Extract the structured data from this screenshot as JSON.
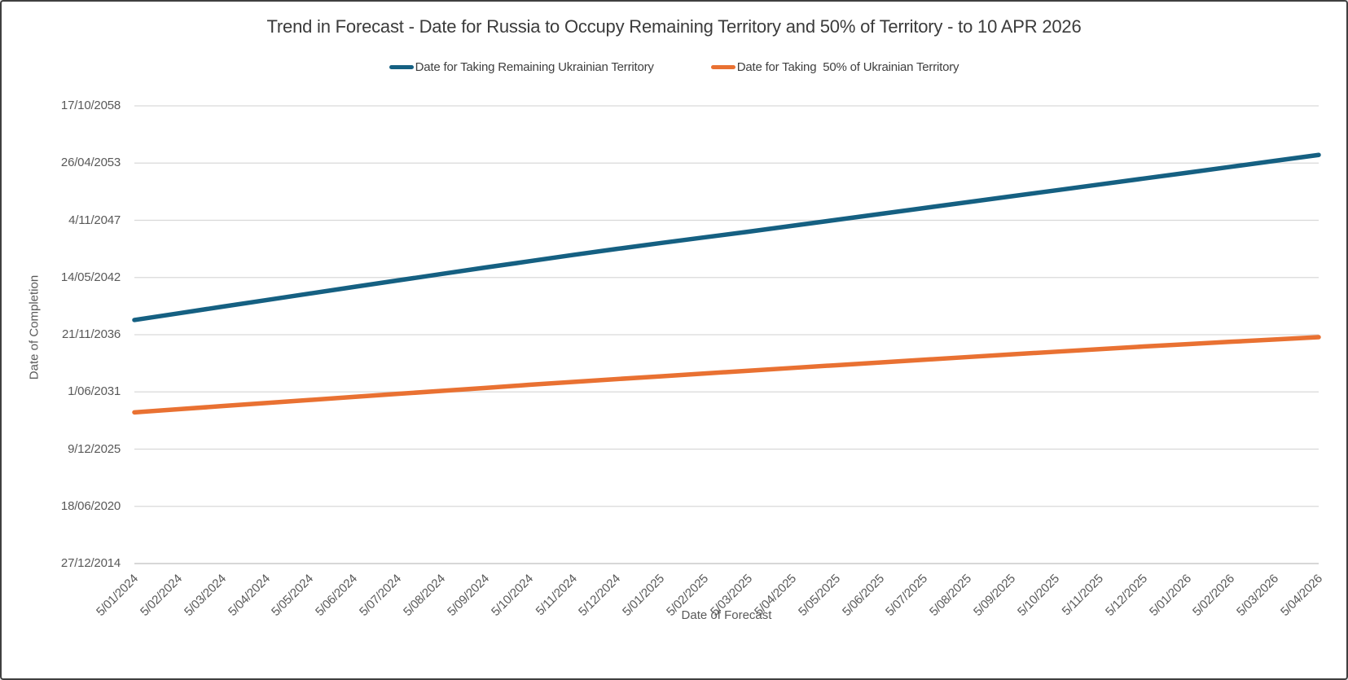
{
  "chart_data": {
    "type": "line",
    "title": "Trend in Forecast - Date for Russia to Occupy Remaining Territory and 50% of Territory - to 10 APR 2026",
    "xlabel": "Date of Forecast",
    "ylabel": "Date of Completion",
    "legend_position": "top-center",
    "grid": "horizontal",
    "y_axis": {
      "min": "27/12/2014",
      "max": "17/10/2058",
      "major_unit_days": 2000
    },
    "y_tick_labels": [
      "27/12/2014",
      "18/06/2020",
      "9/12/2025",
      "1/06/2031",
      "21/11/2036",
      "14/05/2042",
      "4/11/2047",
      "26/04/2053",
      "17/10/2058"
    ],
    "x_tick_labels": [
      "5/01/2024",
      "5/02/2024",
      "5/03/2024",
      "5/04/2024",
      "5/05/2024",
      "5/06/2024",
      "5/07/2024",
      "5/08/2024",
      "5/09/2024",
      "5/10/2024",
      "5/11/2024",
      "5/12/2024",
      "5/01/2025",
      "5/02/2025",
      "5/03/2025",
      "5/04/2025",
      "5/05/2025",
      "5/06/2025",
      "5/07/2025",
      "5/08/2025",
      "5/09/2025",
      "5/10/2025",
      "5/11/2025",
      "5/12/2025",
      "5/01/2026",
      "5/02/2026",
      "5/03/2026",
      "5/04/2026"
    ],
    "series": [
      {
        "name": "Date for Taking Remaining Ukrainian Territory",
        "color": "#156082",
        "values": [
          "20/04/2038",
          "06/12/2038",
          "27/07/2039",
          "13/03/2040",
          "30/10/2040",
          "17/06/2041",
          "30/01/2042",
          "13/09/2042",
          "27/04/2043",
          "02/12/2043",
          "11/07/2044",
          "06/02/2045",
          "30/08/2045",
          "18/03/2046",
          "01/10/2046",
          "25/04/2047",
          "18/11/2047",
          "12/06/2048",
          "04/01/2049",
          "29/07/2049",
          "20/02/2050",
          "14/09/2050",
          "08/04/2051",
          "31/10/2051",
          "24/05/2052",
          "17/12/2052",
          "13/07/2053",
          "05/02/2054"
        ]
      },
      {
        "name": "Date for Taking  50% of Ukrainian Territory",
        "color": "#E97132",
        "values": [
          "17/06/2029",
          "04/10/2029",
          "21/01/2030",
          "08/05/2030",
          "23/08/2030",
          "08/12/2030",
          "24/03/2031",
          "07/07/2031",
          "18/10/2031",
          "04/02/2032",
          "16/05/2032",
          "23/08/2032",
          "28/11/2032",
          "06/03/2033",
          "11/06/2033",
          "16/09/2033",
          "21/12/2033",
          "27/03/2034",
          "30/06/2034",
          "02/10/2034",
          "03/01/2035",
          "05/04/2035",
          "05/07/2035",
          "04/10/2035",
          "27/12/2035",
          "19/03/2036",
          "08/06/2036",
          "27/08/2036"
        ]
      }
    ],
    "colors": {
      "gridline": "#D9D9D9",
      "axis_line": "#BFBFBF",
      "tick_text": "#595959",
      "title_text": "#3B3B3B"
    }
  }
}
